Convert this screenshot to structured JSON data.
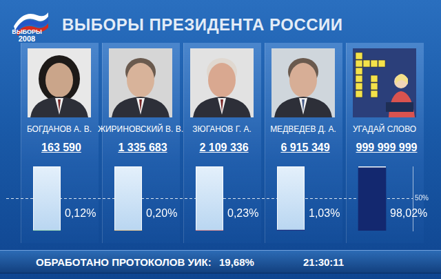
{
  "header": {
    "logo": "ВЫБОРЫ",
    "logo_year": "2008",
    "title": "ВЫБОРЫ ПРЕЗИДЕНТА РОССИИ"
  },
  "chart_data": {
    "type": "bar",
    "categories": [
      "БОГДАНОВ А. В.",
      "ЖИРИНОВСКИЙ В. В.",
      "ЗЮГАНОВ Г. А.",
      "МЕДВЕДЕВ Д. А.",
      "УГАДАЙ СЛОВО"
    ],
    "votes": [
      163590,
      1335683,
      2109336,
      6915349,
      999999999
    ],
    "vote_labels": [
      "163 590",
      "1 335 683",
      "2 109 336",
      "6 915 349",
      "999 999 999"
    ],
    "values": [
      0.12,
      0.2,
      0.23,
      1.03,
      98.02
    ],
    "value_labels": [
      "0,12%",
      "0,20%",
      "0,23%",
      "1,03%",
      "98,02%"
    ],
    "colors": [
      "#3cb36e",
      "#d99a2b",
      "#c0282d",
      "#1b2f80",
      "#13286f"
    ],
    "ylim": [
      0,
      100
    ],
    "yticks": [
      {
        "value": 50,
        "label": "50%"
      }
    ],
    "grid": true,
    "data_labels": true,
    "tick_labels": "y"
  },
  "footer": {
    "label": "ОБРАБОТАНО ПРОТОКОЛОВ УИК:",
    "processed": "19,68%",
    "time": "21:30:11"
  }
}
